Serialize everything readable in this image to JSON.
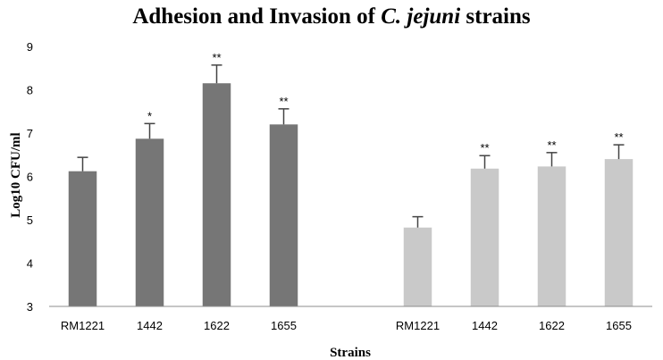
{
  "chart_data": {
    "type": "bar",
    "title_prefix": "Adhesion and Invasion of ",
    "title_italic": "C. jejuni",
    "title_suffix": " strains",
    "xlabel": "Strains",
    "ylabel": "Log10 CFU/ml",
    "ylim": [
      3,
      9
    ],
    "yticks": [
      3,
      4,
      5,
      6,
      7,
      8,
      9
    ],
    "grid": false,
    "colors": {
      "dark": "#767676",
      "light": "#c9c9c9",
      "axis": "#8c8c8c"
    },
    "bars": [
      {
        "category": "RM1221",
        "value": 6.12,
        "error": 0.32,
        "sig": "",
        "color": "dark"
      },
      {
        "category": "1442",
        "value": 6.87,
        "error": 0.35,
        "sig": "*",
        "color": "dark"
      },
      {
        "category": "1622",
        "value": 8.15,
        "error": 0.42,
        "sig": "**",
        "color": "dark"
      },
      {
        "category": "1655",
        "value": 7.2,
        "error": 0.36,
        "sig": "**",
        "color": "dark"
      },
      {
        "category": "",
        "value": 3,
        "error": 0,
        "sig": "",
        "color": "dark"
      },
      {
        "category": "RM1221",
        "value": 4.82,
        "error": 0.25,
        "sig": "",
        "color": "light"
      },
      {
        "category": "1442",
        "value": 6.18,
        "error": 0.3,
        "sig": "**",
        "color": "light"
      },
      {
        "category": "1622",
        "value": 6.23,
        "error": 0.32,
        "sig": "**",
        "color": "light"
      },
      {
        "category": "1655",
        "value": 6.4,
        "error": 0.33,
        "sig": "**",
        "color": "light"
      }
    ]
  }
}
